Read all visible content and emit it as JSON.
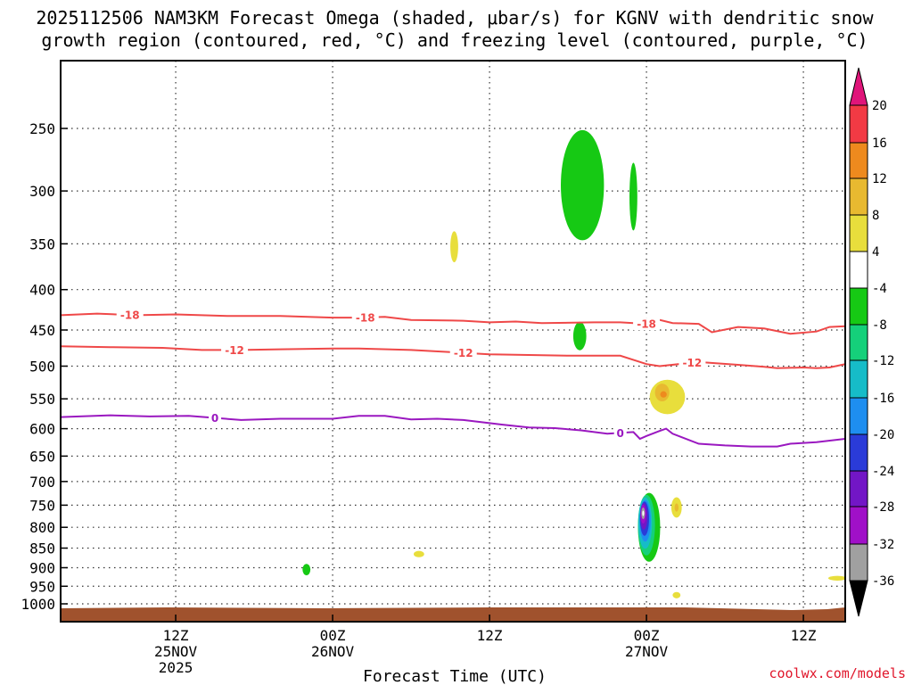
{
  "chart_data": {
    "type": "heatmap",
    "title_line1": "2025112506 NAM3KM Forecast Omega (shaded, μbar/s) for KGNV with dendritic snow",
    "title_line2": "growth region (contoured, red, °C) and freezing level (contoured, purple, °C)",
    "xlabel": "Forecast Time (UTC)",
    "credit": "coolwx.com/models",
    "x_range_hours": [
      -8.8,
      51.2
    ],
    "y_range_hpa": [
      200,
      1025
    ],
    "y_ticks": [
      250,
      300,
      350,
      400,
      450,
      500,
      550,
      600,
      650,
      700,
      750,
      800,
      850,
      900,
      950,
      1000
    ],
    "x_ticks": [
      {
        "hour": 0,
        "time": "12Z",
        "date": "25NOV",
        "year": "2025"
      },
      {
        "hour": 12,
        "time": "00Z",
        "date": "26NOV",
        "year": ""
      },
      {
        "hour": 24,
        "time": "12Z",
        "date": "",
        "year": ""
      },
      {
        "hour": 36,
        "time": "00Z",
        "date": "27NOV",
        "year": ""
      },
      {
        "hour": 48,
        "time": "12Z",
        "date": "",
        "year": ""
      }
    ],
    "colorbar": {
      "labels": [
        "20",
        "16",
        "12",
        "8",
        "4",
        "-4",
        "-8",
        "-12",
        "-16",
        "-20",
        "-24",
        "-28",
        "-32",
        "-36"
      ],
      "bins": [
        {
          "lo": 16,
          "hi": 20,
          "color": "#f23a44"
        },
        {
          "lo": 12,
          "hi": 16,
          "color": "#ee8a1e"
        },
        {
          "lo": 8,
          "hi": 12,
          "color": "#e8b930"
        },
        {
          "lo": 4,
          "hi": 8,
          "color": "#e8de3c"
        },
        {
          "lo": -4,
          "hi": 4,
          "color": "#ffffff"
        },
        {
          "lo": -8,
          "hi": -4,
          "color": "#16c914"
        },
        {
          "lo": -12,
          "hi": -8,
          "color": "#15d07a"
        },
        {
          "lo": -16,
          "hi": -12,
          "color": "#16bcc8"
        },
        {
          "lo": -20,
          "hi": -16,
          "color": "#1e8ef0"
        },
        {
          "lo": -24,
          "hi": -20,
          "color": "#2a3bd8"
        },
        {
          "lo": -28,
          "hi": -24,
          "color": "#7216c6"
        },
        {
          "lo": -32,
          "hi": -28,
          "color": "#a010c8"
        },
        {
          "lo": -36,
          "hi": -32,
          "color": "#a0a0a0"
        }
      ],
      "top_arrow_color": "#e0157a",
      "bottom_arrow_color": "#000000"
    },
    "contours": [
      {
        "label": "-18",
        "color": "#ef4848",
        "points": [
          [
            -8.8,
            431
          ],
          [
            -6,
            429
          ],
          [
            -3,
            431
          ],
          [
            0,
            430
          ],
          [
            4,
            432
          ],
          [
            8,
            432
          ],
          [
            12,
            434
          ],
          [
            14,
            434
          ],
          [
            16,
            433
          ],
          [
            18,
            437
          ],
          [
            22,
            438
          ],
          [
            24,
            440
          ],
          [
            26,
            439
          ],
          [
            28,
            441
          ],
          [
            32,
            440
          ],
          [
            34,
            440
          ],
          [
            36,
            442
          ],
          [
            37,
            437
          ],
          [
            38,
            441
          ],
          [
            40,
            442
          ],
          [
            41,
            453
          ],
          [
            43,
            446
          ],
          [
            45,
            448
          ],
          [
            47,
            455
          ],
          [
            49,
            452
          ],
          [
            50,
            446
          ],
          [
            51.2,
            445
          ]
        ],
        "label_hours": [
          -3.5,
          14.5,
          36
        ]
      },
      {
        "label": "-12",
        "color": "#ef4848",
        "points": [
          [
            -8.8,
            472
          ],
          [
            -5,
            473
          ],
          [
            -1,
            474
          ],
          [
            2,
            477
          ],
          [
            5,
            477
          ],
          [
            8,
            476
          ],
          [
            12,
            475
          ],
          [
            14,
            475
          ],
          [
            18,
            477
          ],
          [
            21,
            480
          ],
          [
            24,
            483
          ],
          [
            27,
            484
          ],
          [
            30,
            485
          ],
          [
            34,
            485
          ],
          [
            36,
            497
          ],
          [
            37,
            500
          ],
          [
            40,
            494
          ],
          [
            43,
            498
          ],
          [
            45,
            501
          ],
          [
            46,
            503
          ],
          [
            48,
            502
          ],
          [
            49,
            503
          ],
          [
            50,
            502
          ],
          [
            51.2,
            497
          ]
        ],
        "label_hours": [
          4.5,
          22,
          39.5
        ]
      },
      {
        "label": "0",
        "color": "#9a18c0",
        "points": [
          [
            -8.8,
            580
          ],
          [
            -5,
            577
          ],
          [
            -2,
            579
          ],
          [
            1,
            578
          ],
          [
            5,
            585
          ],
          [
            8,
            583
          ],
          [
            12,
            583
          ],
          [
            14,
            578
          ],
          [
            16,
            578
          ],
          [
            18,
            584
          ],
          [
            20,
            583
          ],
          [
            22,
            585
          ],
          [
            25,
            593
          ],
          [
            27,
            598
          ],
          [
            29,
            599
          ],
          [
            31,
            603
          ],
          [
            33,
            609
          ],
          [
            35,
            606
          ],
          [
            35.5,
            618
          ],
          [
            36,
            613
          ],
          [
            37,
            604
          ],
          [
            37.5,
            600
          ],
          [
            38,
            609
          ],
          [
            40,
            627
          ],
          [
            42,
            630
          ],
          [
            44,
            632
          ],
          [
            46,
            632
          ],
          [
            47,
            627
          ],
          [
            49,
            624
          ],
          [
            51.2,
            618
          ]
        ],
        "label_hours": [
          3,
          34
        ]
      }
    ],
    "omega_features": [
      {
        "type": "blob",
        "hour": 31.1,
        "pres": 295,
        "w": 3.3,
        "h": 94,
        "color": "#16c914"
      },
      {
        "type": "blob",
        "hour": 35.0,
        "pres": 305,
        "w": 0.6,
        "h": 60,
        "color": "#16c914"
      },
      {
        "type": "blob",
        "hour": 30.9,
        "pres": 458,
        "w": 1.0,
        "h": 38,
        "color": "#16c914"
      },
      {
        "type": "blob",
        "hour": 21.3,
        "pres": 353,
        "w": 0.6,
        "h": 32,
        "color": "#e8de3c"
      },
      {
        "type": "blob",
        "hour": 18.6,
        "pres": 865,
        "w": 0.8,
        "h": 16,
        "color": "#e8de3c"
      },
      {
        "type": "blob",
        "hour": 10.0,
        "pres": 905,
        "w": 0.6,
        "h": 30,
        "color": "#16c914"
      },
      {
        "type": "blob",
        "hour": 50.6,
        "pres": 928,
        "w": 1.4,
        "h": 13,
        "color": "#e8de3c"
      },
      {
        "type": "blob",
        "hour": 37.6,
        "pres": 547,
        "w": 2.7,
        "h": 55,
        "color": "#e8de3c"
      },
      {
        "type": "blob",
        "hour": 37.2,
        "pres": 540,
        "w": 1.1,
        "h": 28,
        "color": "#e8b930"
      },
      {
        "type": "blob",
        "hour": 37.3,
        "pres": 543,
        "w": 0.5,
        "h": 10,
        "color": "#ee8a1e"
      },
      {
        "type": "blob",
        "hour": 38.3,
        "pres": 755,
        "w": 0.8,
        "h": 45,
        "color": "#e8de3c"
      },
      {
        "type": "blob",
        "hour": 38.3,
        "pres": 755,
        "w": 0.3,
        "h": 18,
        "color": "#e8b930"
      },
      {
        "type": "blob",
        "hour": 38.3,
        "pres": 975,
        "w": 0.6,
        "h": 18,
        "color": "#e8de3c"
      },
      {
        "type": "blob",
        "hour": 36.2,
        "pres": 800,
        "w": 1.7,
        "h": 160,
        "color": "#16c914"
      },
      {
        "type": "blob",
        "hour": 36.0,
        "pres": 795,
        "w": 1.3,
        "h": 140,
        "color": "#15d07a"
      },
      {
        "type": "blob",
        "hour": 35.9,
        "pres": 790,
        "w": 1.05,
        "h": 118,
        "color": "#16bcc8"
      },
      {
        "type": "blob",
        "hour": 35.9,
        "pres": 785,
        "w": 0.85,
        "h": 95,
        "color": "#1e8ef0"
      },
      {
        "type": "blob",
        "hour": 35.85,
        "pres": 780,
        "w": 0.7,
        "h": 78,
        "color": "#2a3bd8"
      },
      {
        "type": "blob",
        "hour": 35.8,
        "pres": 775,
        "w": 0.55,
        "h": 60,
        "color": "#7216c6"
      },
      {
        "type": "blob",
        "hour": 35.75,
        "pres": 770,
        "w": 0.42,
        "h": 42,
        "color": "#a010c8"
      },
      {
        "type": "blob",
        "hour": 35.75,
        "pres": 768,
        "w": 0.28,
        "h": 26,
        "color": "#a0a0a0"
      },
      {
        "type": "blob",
        "hour": 35.75,
        "pres": 768,
        "w": 0.14,
        "h": 12,
        "color": "#ffffff"
      }
    ],
    "ground_color": "#a0522d"
  }
}
